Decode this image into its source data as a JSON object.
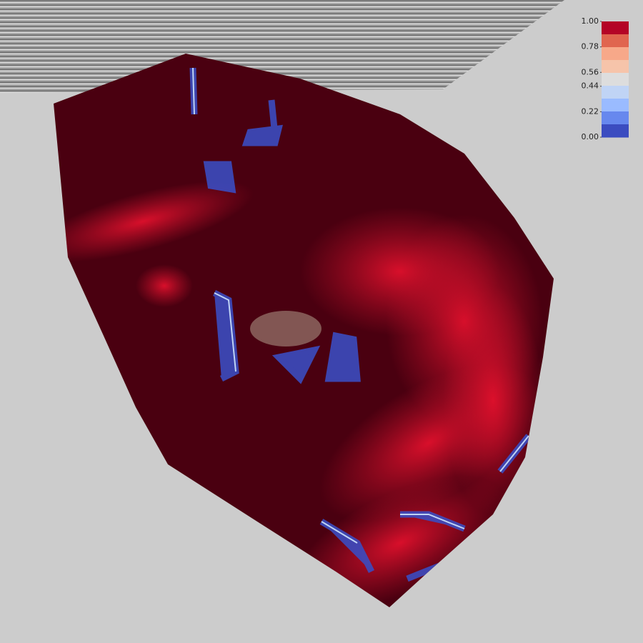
{
  "colorbar": {
    "ticks": [
      {
        "value": 1.0,
        "label": "1.00"
      },
      {
        "value": 0.78,
        "label": "0.78"
      },
      {
        "value": 0.56,
        "label": "0.56"
      },
      {
        "value": 0.44,
        "label": "0.44"
      },
      {
        "value": 0.22,
        "label": "0.22"
      },
      {
        "value": 0.0,
        "label": "0.00"
      }
    ],
    "colors": [
      "#b40426",
      "#e0654f",
      "#f7a889",
      "#f6c4aa",
      "#dddddd",
      "#c0d4f5",
      "#9abbff",
      "#6788ee",
      "#3b4cc0"
    ]
  }
}
